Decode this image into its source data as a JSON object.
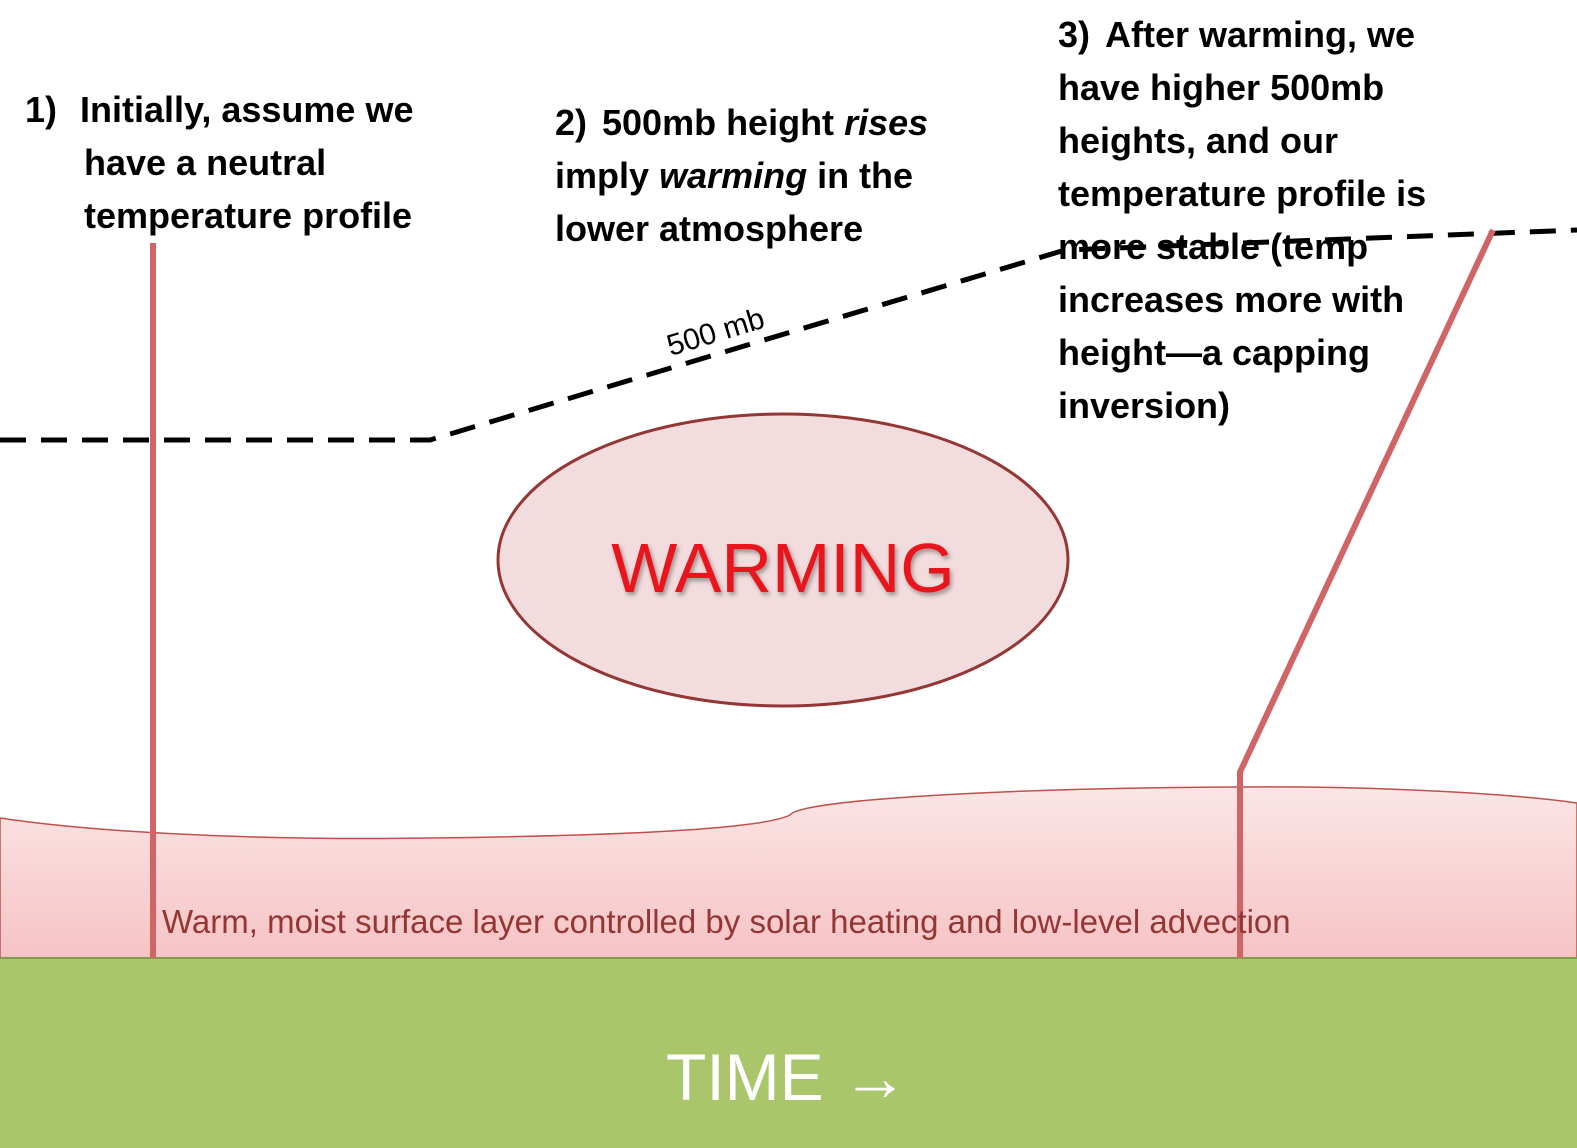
{
  "steps": [
    {
      "number": "1)",
      "lines": [
        [
          {
            "text": "Initially, assume we"
          }
        ],
        [
          {
            "text": "have a neutral"
          }
        ],
        [
          {
            "text": "temperature profile"
          }
        ]
      ]
    },
    {
      "number": "2)",
      "lines": [
        [
          {
            "text": "500mb height "
          },
          {
            "text": "rises",
            "italic": true
          }
        ],
        [
          {
            "text": "imply "
          },
          {
            "text": "warming",
            "italic": true
          },
          {
            "text": " in the"
          }
        ],
        [
          {
            "text": "lower atmosphere"
          }
        ]
      ]
    },
    {
      "number": "3)",
      "lines": [
        [
          {
            "text": "After warming, we"
          }
        ],
        [
          {
            "text": "have higher 500mb"
          }
        ],
        [
          {
            "text": "heights, and our"
          }
        ],
        [
          {
            "text": "temperature profile is"
          }
        ],
        [
          {
            "text": "more stable (temp"
          }
        ],
        [
          {
            "text": "increases more with"
          }
        ],
        [
          {
            "text": "height—a capping"
          }
        ],
        [
          {
            "text": "inversion)"
          }
        ]
      ]
    }
  ],
  "pressure_label": "500 mb",
  "warming_label": "WARMING",
  "surface_label": "Warm, moist surface layer controlled by solar heating and low-level advection",
  "time_label": "TIME →"
}
